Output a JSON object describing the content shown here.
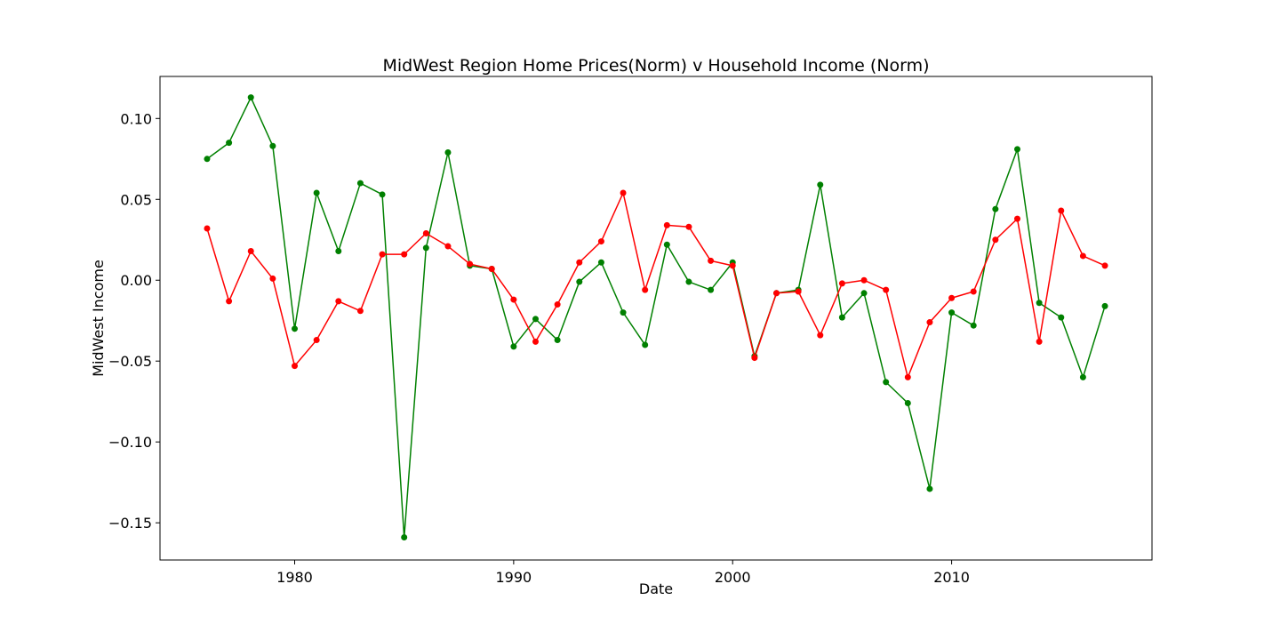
{
  "chart_data": {
    "type": "line",
    "title": "MidWest Region Home Prices(Norm) v Household Income (Norm)",
    "xlabel": "Date",
    "ylabel": "MidWest Income",
    "xlim": [
      1973.85,
      2019.15
    ],
    "ylim": [
      -0.173,
      0.126
    ],
    "xticks": [
      1980,
      1990,
      2000,
      2010
    ],
    "yticks": [
      0.1,
      0.05,
      0.0,
      -0.05,
      -0.1,
      -0.15
    ],
    "ytick_labels": [
      "0.10",
      "0.05",
      "0.00",
      "−0.05",
      "−0.10",
      "−0.15"
    ],
    "grid": false,
    "x": [
      1976,
      1977,
      1978,
      1979,
      1980,
      1981,
      1982,
      1983,
      1984,
      1985,
      1986,
      1987,
      1988,
      1989,
      1990,
      1991,
      1992,
      1993,
      1994,
      1995,
      1996,
      1997,
      1998,
      1999,
      2000,
      2001,
      2002,
      2003,
      2004,
      2005,
      2006,
      2007,
      2008,
      2009,
      2010,
      2011,
      2012,
      2013,
      2014,
      2015,
      2016,
      2017
    ],
    "series": [
      {
        "color": "#008000",
        "values": [
          0.075,
          0.085,
          0.113,
          0.083,
          -0.03,
          0.054,
          0.018,
          0.06,
          0.053,
          -0.159,
          0.02,
          0.079,
          0.009,
          0.007,
          -0.041,
          -0.024,
          -0.037,
          -0.001,
          0.011,
          -0.02,
          -0.04,
          0.022,
          -0.001,
          -0.006,
          0.011,
          -0.047,
          -0.008,
          -0.006,
          0.059,
          -0.023,
          -0.008,
          -0.063,
          -0.076,
          -0.129,
          -0.02,
          -0.028,
          0.044,
          0.081,
          -0.014,
          -0.023,
          -0.06,
          -0.016
        ]
      },
      {
        "color": "#ff0000",
        "values": [
          0.032,
          -0.013,
          0.018,
          0.001,
          -0.053,
          -0.037,
          -0.013,
          -0.019,
          0.016,
          0.016,
          0.029,
          0.021,
          0.01,
          0.007,
          -0.012,
          -0.038,
          -0.015,
          0.011,
          0.024,
          0.054,
          -0.006,
          0.034,
          0.033,
          0.012,
          0.009,
          -0.048,
          -0.008,
          -0.007,
          -0.034,
          -0.002,
          0.0,
          -0.006,
          -0.06,
          -0.026,
          -0.011,
          -0.007,
          0.025,
          0.038,
          -0.038,
          0.043,
          0.015,
          0.009
        ]
      }
    ]
  }
}
